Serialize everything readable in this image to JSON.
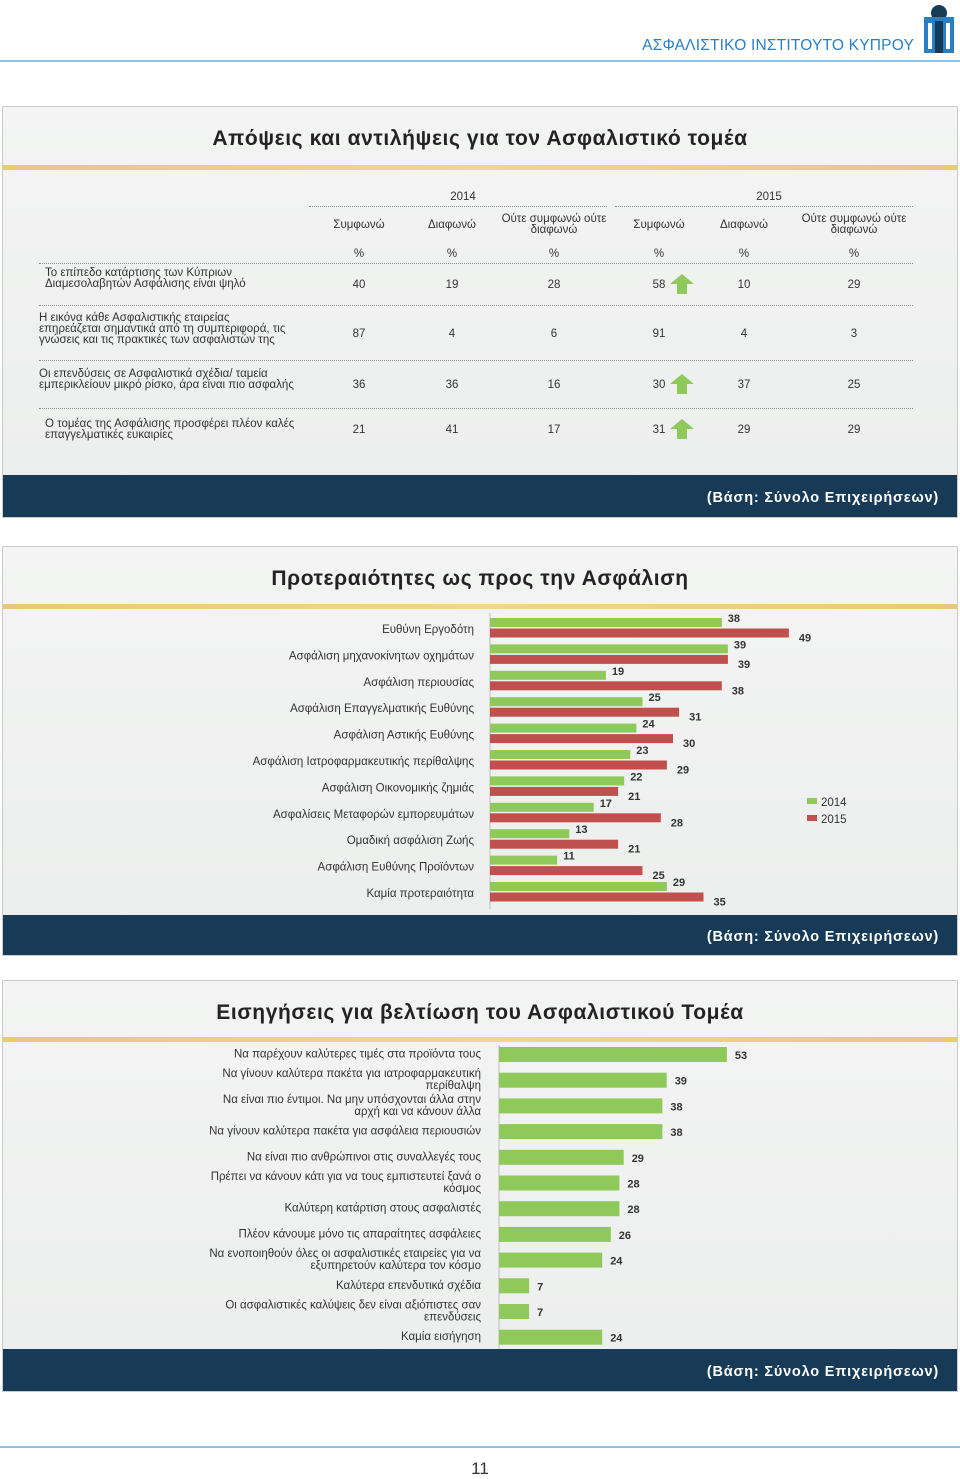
{
  "header": {
    "org_name": "ΑΣΦΑΛΙΣΤΙΚΟ ΙΝΣΤΙΤΟΥΤΟ ΚΥΠΡΟΥ"
  },
  "base_text": "(Βάση: Σύνολο Επιχειρήσεων)",
  "page_number": "11",
  "colors": {
    "green": "#8fc95a",
    "red": "#c0504d",
    "navy": "#173a57",
    "accent": "#2a7fc4"
  },
  "table_panel": {
    "title": "Απόψεις και αντιλήψεις για τον Ασφαλιστικό τομέα",
    "years": [
      "2014",
      "2015"
    ],
    "columns": [
      "Συμφωνώ",
      "Διαφωνώ",
      "Ούτε συμφωνώ ούτε διαφωνώ",
      "Συμφωνώ",
      "Διαφωνώ",
      "Ούτε συμφωνώ ούτε διαφωνώ"
    ],
    "unit": "%",
    "rows": [
      {
        "label": "Το επίπεδο κατάρτισης των Κύπριων Διαμεσολαβητών Ασφάλισης είναι ψηλό",
        "values": [
          "40",
          "19",
          "28",
          "58",
          "10",
          "29"
        ],
        "arrow": true
      },
      {
        "label": "Η εικόνα κάθε Ασφαλιστικής εταιρείας επηρεάζεται σημαντικά από τη συμπεριφορά, τις γνώσεις και τις πρακτικές των ασφαλιστών της",
        "values": [
          "87",
          "4",
          "6",
          "91",
          "4",
          "3"
        ],
        "arrow": false
      },
      {
        "label": "Οι επενδύσεις σε Ασφαλιστικά σχέδια/ ταμεία εμπερικλείουν μικρό ρίσκο, άρα είναι πιο ασφαλής",
        "values": [
          "36",
          "36",
          "16",
          "30",
          "37",
          "25"
        ],
        "arrow": true
      },
      {
        "label": "Ο τομέας της Ασφάλισης προσφέρει πλέον καλές επαγγελματικές ευκαιρίες",
        "values": [
          "21",
          "41",
          "17",
          "31",
          "29",
          "29"
        ],
        "arrow": true
      }
    ]
  },
  "chart_data": [
    {
      "type": "bar",
      "orientation": "horizontal",
      "title": "Προτεραιότητες ως προς την Ασφάλιση",
      "categories": [
        "Ευθύνη Εργοδότη",
        "Ασφάλιση μηχανοκίνητων οχημάτων",
        "Ασφάλιση περιουσίας",
        "Ασφάλιση Επαγγελματικής Ευθύνης",
        "Ασφάλιση Αστικής Ευθύνης",
        "Ασφάλιση Ιατροφαρμακευτικής περίθαλψης",
        "Ασφάλιση Οικονομικής ζημιάς",
        "Ασφαλίσεις Μεταφορών εμπορευμάτων",
        "Ομαδική ασφάλιση Ζωής",
        "Ασφάλιση Ευθύνης Προϊόντων",
        "Καμία προτεραιότητα"
      ],
      "series": [
        {
          "name": "2014",
          "color": "#8fc95a",
          "values": [
            38,
            39,
            19,
            25,
            24,
            23,
            22,
            17,
            13,
            11,
            29
          ]
        },
        {
          "name": "2015",
          "color": "#c0504d",
          "values": [
            49,
            39,
            38,
            31,
            30,
            29,
            21,
            28,
            21,
            25,
            35
          ]
        }
      ],
      "legend": "right",
      "data_labels": true
    },
    {
      "type": "bar",
      "orientation": "horizontal",
      "title": "Εισηγήσεις για βελτίωση του Ασφαλιστικού Τομέα",
      "categories": [
        "Να παρέχουν καλύτερες τιμές στα προϊόντα τους",
        "Να γίνουν καλύτερα πακέτα για ιατροφαρμακευτική περίθαλψη",
        "Να είναι πιο έντιμοι. Να μην υπόσχονται άλλα στην αρχή και να κάνουν άλλα",
        "Να γίνουν καλύτερα πακέτα για ασφάλεια περιουσιών",
        "Να είναι πιο ανθρώπινοι στις συναλλεγές τους",
        "Πρέπει να κάνουν κάτι για να τους εμπιστευτεί ξανά ο κόσμος",
        "Καλύτερη κατάρτιση στους ασφαλιστές",
        "Πλέον κάνουμε μόνο τις απαραίτητες ασφάλειες",
        "Να ενοποιηθούν όλες οι ασφαλιστικές εταιρείες για να εξυπηρετούν καλύτερα τον κόσμο",
        "Καλύτερα επενδυτικά σχέδια",
        "Οι ασφαλιστικές καλύψεις δεν είναι αξιόπιστες σαν επενδύσεις",
        "Καμία εισήγηση"
      ],
      "values": [
        53,
        39,
        38,
        38,
        29,
        28,
        28,
        26,
        24,
        7,
        7,
        24
      ],
      "color": "#8fc95a",
      "data_labels": true
    }
  ]
}
